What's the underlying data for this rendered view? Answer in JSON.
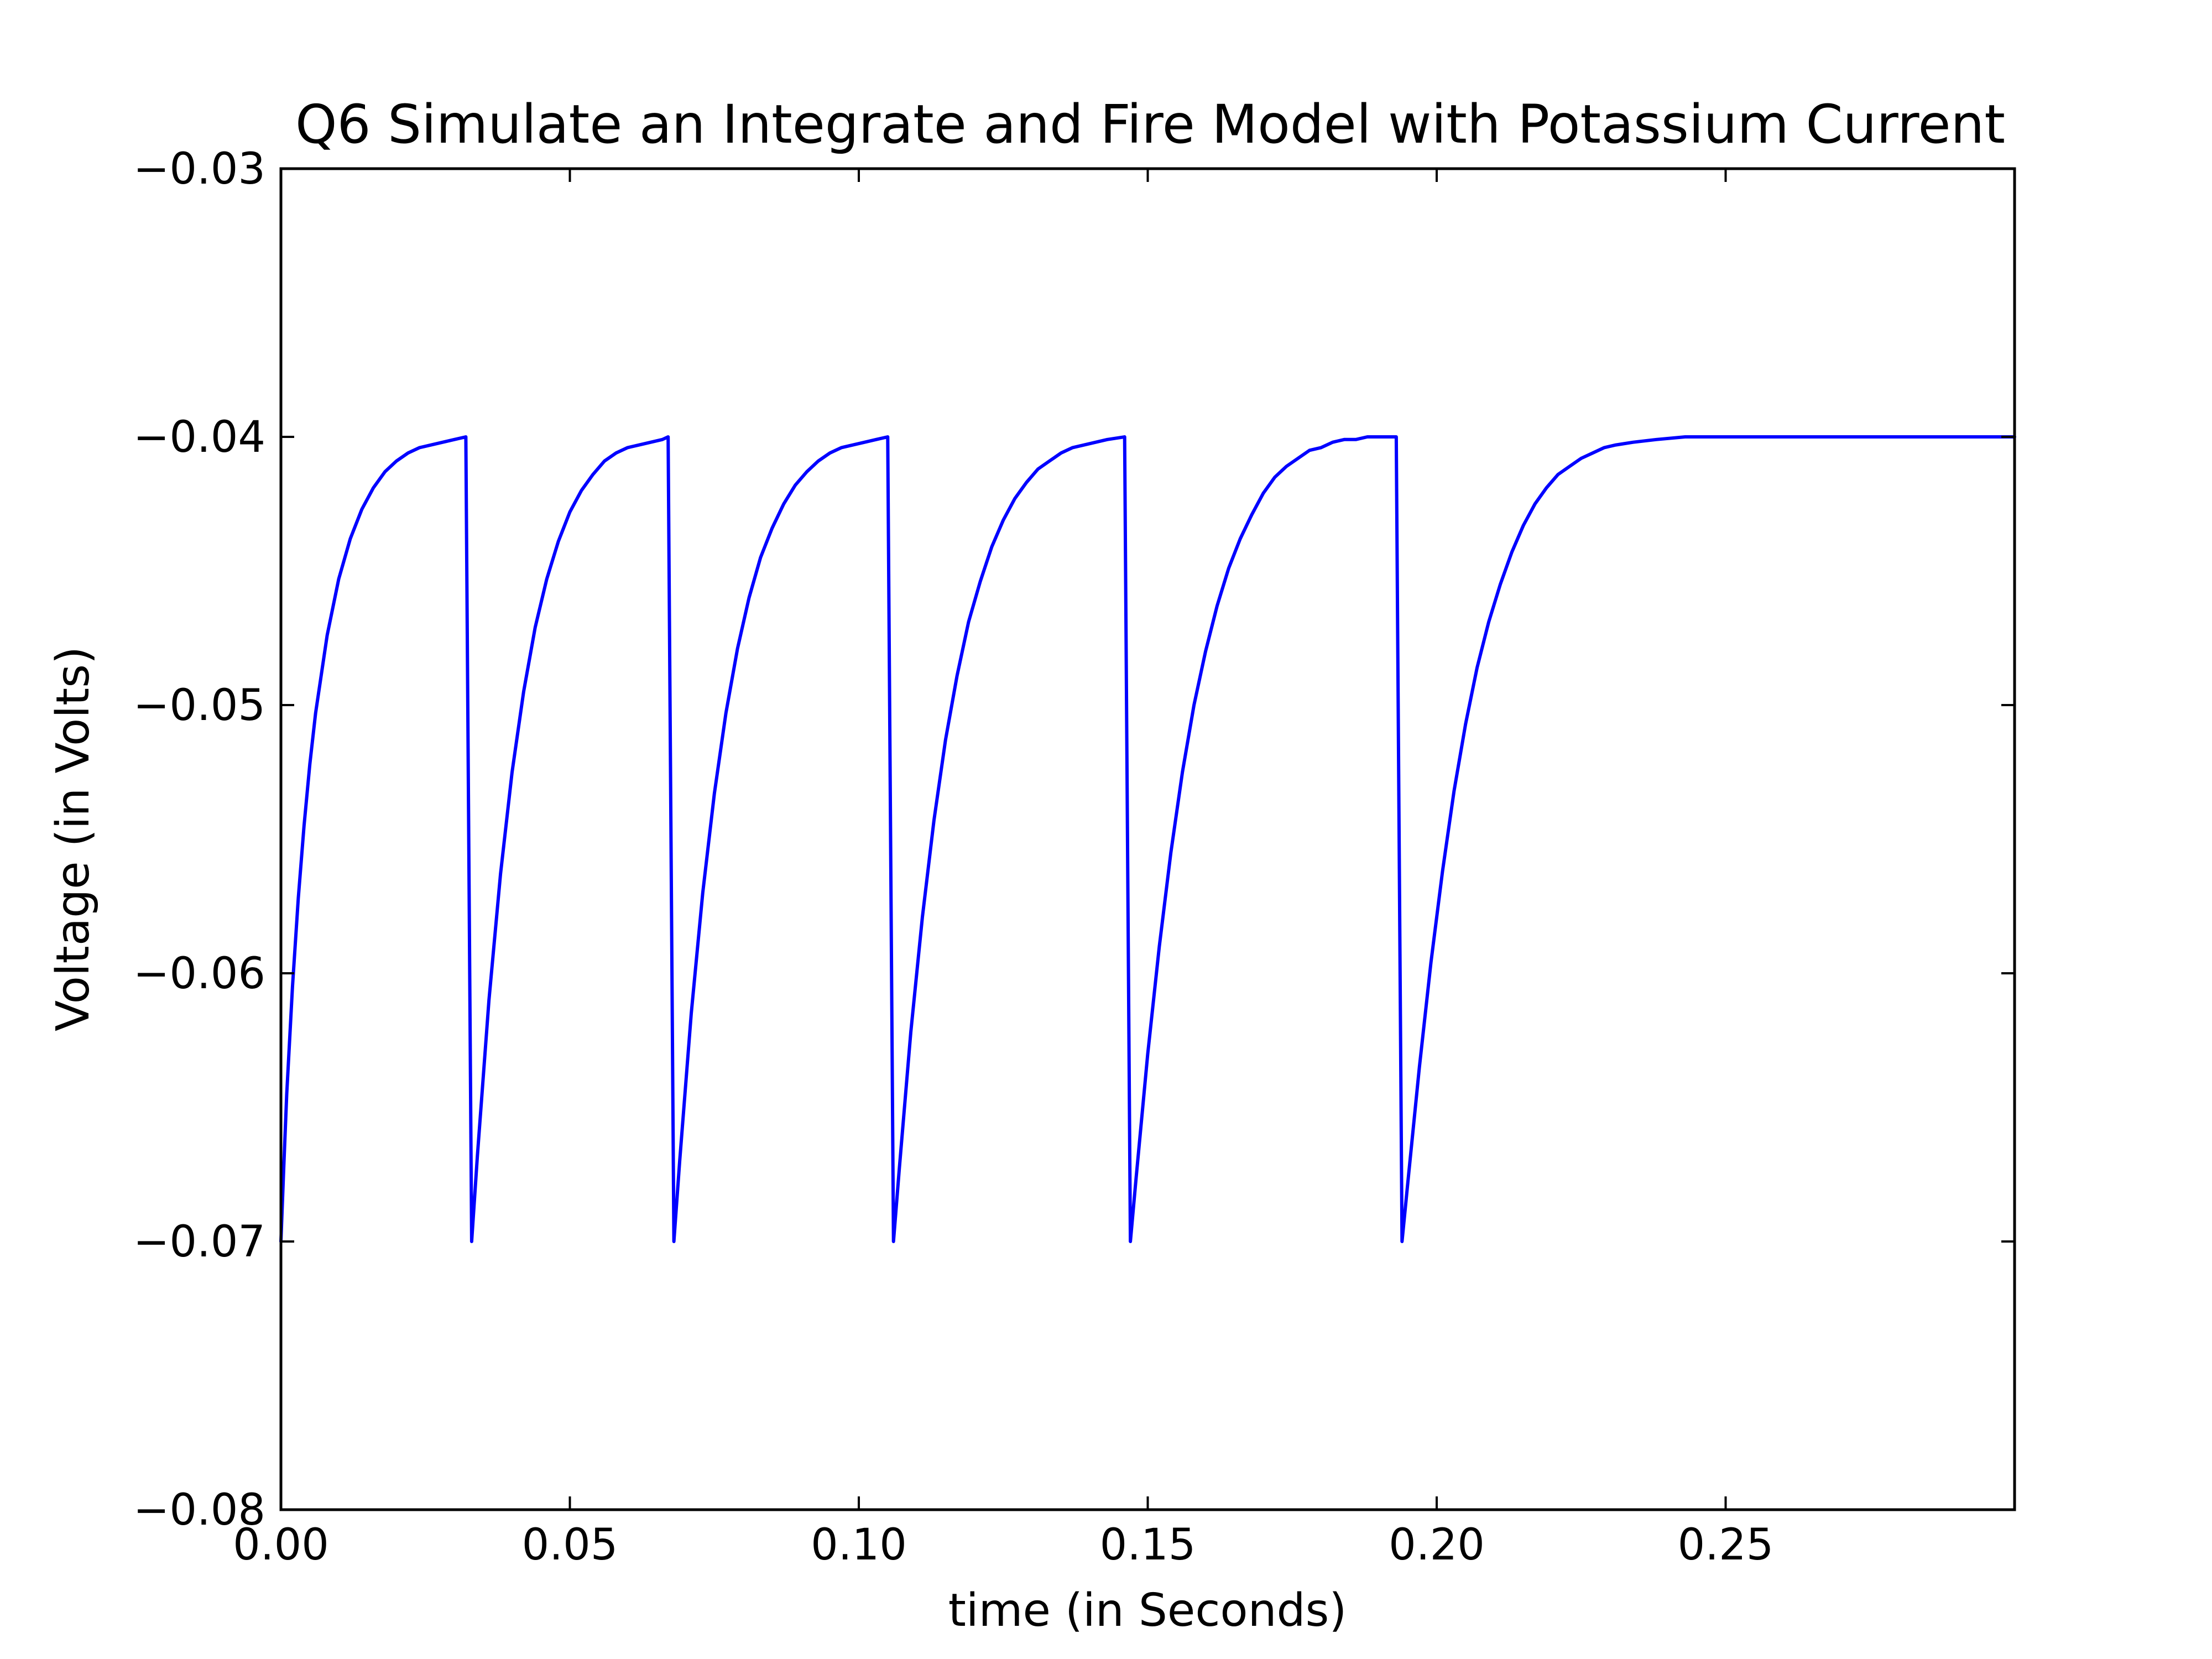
{
  "chart_data": {
    "type": "line",
    "title": "Q6 Simulate an Integrate and Fire Model with Potassium Current",
    "xlabel": "time (in Seconds)",
    "ylabel": "Voltage (in Volts)",
    "xlim": [
      0,
      0.3
    ],
    "ylim": [
      -0.08,
      -0.03
    ],
    "x_ticks": [
      0.0,
      0.05,
      0.1,
      0.15,
      0.2,
      0.25
    ],
    "x_tick_labels": [
      "0.00",
      "0.05",
      "0.10",
      "0.15",
      "0.20",
      "0.25"
    ],
    "y_ticks": [
      -0.03,
      -0.04,
      -0.05,
      -0.06,
      -0.07,
      -0.08
    ],
    "y_tick_labels": [
      "−0.03",
      "−0.04",
      "−0.05",
      "−0.06",
      "−0.07",
      "−0.08"
    ],
    "grid": false,
    "line_color": "#0000ff",
    "series": [
      {
        "x": [
          0.0,
          0.0005,
          0.001,
          0.002,
          0.003,
          0.004,
          0.005,
          0.006,
          0.008,
          0.01,
          0.012,
          0.014,
          0.016,
          0.018,
          0.02,
          0.022,
          0.024,
          0.026,
          0.028,
          0.03,
          0.032,
          0.033,
          0.034,
          0.036,
          0.038,
          0.04,
          0.042,
          0.044,
          0.046,
          0.048,
          0.05,
          0.052,
          0.054,
          0.056,
          0.058,
          0.06,
          0.062,
          0.064,
          0.066,
          0.067,
          0.068,
          0.069,
          0.071,
          0.073,
          0.075,
          0.077,
          0.079,
          0.081,
          0.083,
          0.085,
          0.087,
          0.089,
          0.091,
          0.093,
          0.095,
          0.097,
          0.099,
          0.101,
          0.103,
          0.105,
          0.106,
          0.107,
          0.109,
          0.111,
          0.113,
          0.115,
          0.117,
          0.119,
          0.121,
          0.123,
          0.125,
          0.127,
          0.129,
          0.131,
          0.133,
          0.135,
          0.137,
          0.139,
          0.141,
          0.143,
          0.146,
          0.147,
          0.148,
          0.15,
          0.152,
          0.154,
          0.156,
          0.158,
          0.16,
          0.162,
          0.164,
          0.166,
          0.168,
          0.17,
          0.172,
          0.174,
          0.176,
          0.178,
          0.18,
          0.182,
          0.184,
          0.186,
          0.188,
          0.19,
          0.193,
          0.194,
          0.195,
          0.197,
          0.199,
          0.201,
          0.203,
          0.205,
          0.207,
          0.209,
          0.211,
          0.213,
          0.215,
          0.217,
          0.219,
          0.221,
          0.223,
          0.225,
          0.227,
          0.229,
          0.231,
          0.234,
          0.238,
          0.243,
          0.25,
          0.26,
          0.27,
          0.28,
          0.29,
          0.3
        ],
        "y": [
          -0.07,
          -0.0672,
          -0.0645,
          -0.0605,
          -0.0572,
          -0.0545,
          -0.0522,
          -0.0503,
          -0.0474,
          -0.0453,
          -0.0438,
          -0.0427,
          -0.0419,
          -0.0413,
          -0.0409,
          -0.0406,
          -0.0404,
          -0.0403,
          -0.0402,
          -0.0401,
          -0.04,
          -0.07,
          -0.0668,
          -0.061,
          -0.0563,
          -0.0525,
          -0.0495,
          -0.0471,
          -0.0453,
          -0.0439,
          -0.0428,
          -0.042,
          -0.0414,
          -0.0409,
          -0.0406,
          -0.0404,
          -0.0403,
          -0.0402,
          -0.0401,
          -0.04,
          -0.07,
          -0.067,
          -0.0615,
          -0.057,
          -0.0533,
          -0.0503,
          -0.0479,
          -0.046,
          -0.0445,
          -0.0434,
          -0.0425,
          -0.0418,
          -0.0413,
          -0.0409,
          -0.0406,
          -0.0404,
          -0.0403,
          -0.0402,
          -0.0401,
          -0.04,
          -0.07,
          -0.0673,
          -0.0622,
          -0.0579,
          -0.0543,
          -0.0513,
          -0.0489,
          -0.0469,
          -0.0454,
          -0.0441,
          -0.0431,
          -0.0423,
          -0.0417,
          -0.0412,
          -0.0409,
          -0.0406,
          -0.0404,
          -0.0403,
          -0.0402,
          -0.0401,
          -0.04,
          -0.07,
          -0.0676,
          -0.063,
          -0.059,
          -0.0555,
          -0.0525,
          -0.05,
          -0.048,
          -0.0463,
          -0.0449,
          -0.0438,
          -0.0429,
          -0.0421,
          -0.0415,
          -0.0411,
          -0.0408,
          -0.0405,
          -0.0404,
          -0.0402,
          -0.0401,
          -0.0401,
          -0.04,
          -0.04,
          -0.04,
          -0.07,
          -0.0678,
          -0.0635,
          -0.0596,
          -0.0562,
          -0.0532,
          -0.0507,
          -0.0486,
          -0.0469,
          -0.0455,
          -0.0443,
          -0.0433,
          -0.0425,
          -0.0419,
          -0.0414,
          -0.0411,
          -0.0408,
          -0.0406,
          -0.0404,
          -0.0403,
          -0.0402,
          -0.0401,
          -0.04,
          -0.04,
          -0.04,
          -0.04,
          -0.04,
          -0.04,
          -0.04
        ]
      }
    ]
  }
}
